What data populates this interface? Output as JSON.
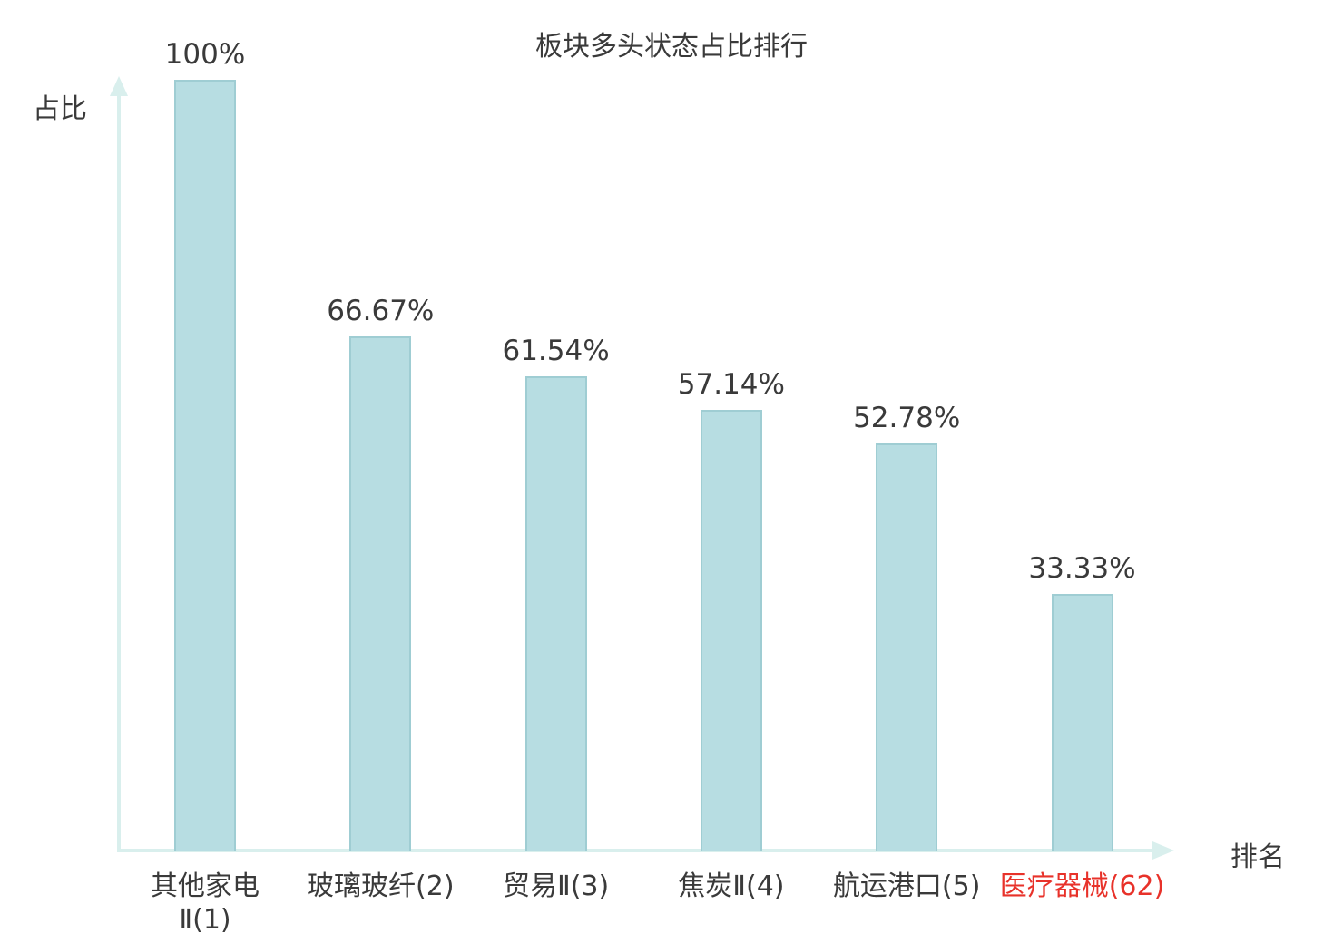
{
  "chart_data": {
    "type": "bar",
    "title": "板块多头状态占比排行",
    "xlabel": "排名",
    "ylabel": "占比",
    "categories": [
      "其他家电\nⅡ(1)",
      "玻璃玻纤(2)",
      "贸易Ⅱ(3)",
      "焦炭Ⅱ(4)",
      "航运港口(5)",
      "医疗器械(62)"
    ],
    "values": [
      100,
      66.67,
      61.54,
      57.14,
      52.78,
      33.33
    ],
    "value_labels": [
      "100%",
      "66.67%",
      "61.54%",
      "57.14%",
      "52.78%",
      "33.33%"
    ],
    "highlight_index": 5,
    "ylim": [
      0,
      100
    ],
    "grid": false,
    "legend_position": "none",
    "colors": {
      "bar_fill": "#b7dde2",
      "bar_border": "#9fcdd3",
      "axis": "#d9efed",
      "text": "#3a3a3a",
      "highlight": "#e8322a"
    }
  }
}
